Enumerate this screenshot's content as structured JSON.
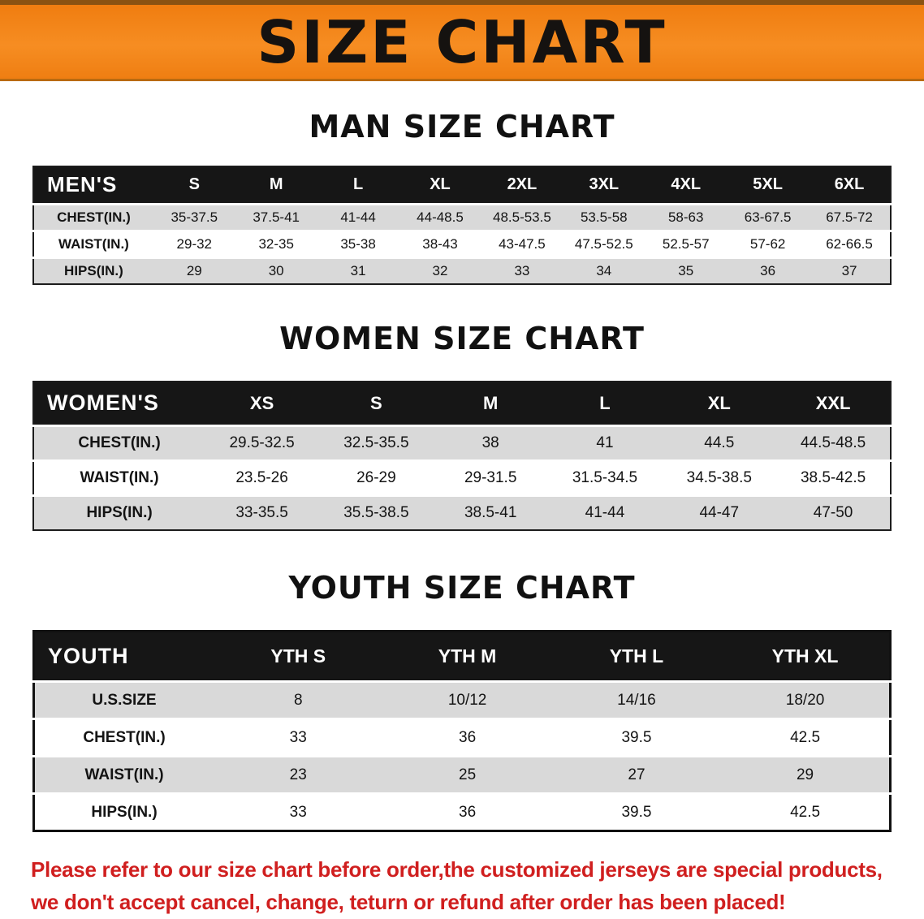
{
  "banner": {
    "title": "SIZE CHART",
    "bg_color": "#F5821C",
    "text_color": "#151210"
  },
  "sections": [
    {
      "id": "men",
      "heading": "MAN SIZE CHART",
      "table": {
        "header": [
          "MEN'S",
          "S",
          "M",
          "L",
          "XL",
          "2XL",
          "3XL",
          "4XL",
          "5XL",
          "6XL"
        ],
        "rows": [
          [
            "CHEST(IN.)",
            "35-37.5",
            "37.5-41",
            "41-44",
            "44-48.5",
            "48.5-53.5",
            "53.5-58",
            "58-63",
            "63-67.5",
            "67.5-72"
          ],
          [
            "WAIST(IN.)",
            "29-32",
            "32-35",
            "35-38",
            "38-43",
            "43-47.5",
            "47.5-52.5",
            "52.5-57",
            "57-62",
            "62-66.5"
          ],
          [
            "HIPS(IN.)",
            "29",
            "30",
            "31",
            "32",
            "33",
            "34",
            "35",
            "36",
            "37"
          ]
        ]
      }
    },
    {
      "id": "women",
      "heading": "WOMEN SIZE CHART",
      "table": {
        "header": [
          "WOMEN'S",
          "XS",
          "S",
          "M",
          "L",
          "XL",
          "XXL"
        ],
        "rows": [
          [
            "CHEST(IN.)",
            "29.5-32.5",
            "32.5-35.5",
            "38",
            "41",
            "44.5",
            "44.5-48.5"
          ],
          [
            "WAIST(IN.)",
            "23.5-26",
            "26-29",
            "29-31.5",
            "31.5-34.5",
            "34.5-38.5",
            "38.5-42.5"
          ],
          [
            "HIPS(IN.)",
            "33-35.5",
            "35.5-38.5",
            "38.5-41",
            "41-44",
            "44-47",
            "47-50"
          ]
        ]
      }
    },
    {
      "id": "youth",
      "heading": "YOUTH SIZE CHART",
      "table": {
        "header": [
          "YOUTH",
          "YTH S",
          "YTH M",
          "YTH L",
          "YTH XL"
        ],
        "rows": [
          [
            "U.S.SIZE",
            "8",
            "10/12",
            "14/16",
            "18/20"
          ],
          [
            "CHEST(IN.)",
            "33",
            "36",
            "39.5",
            "42.5"
          ],
          [
            "WAIST(IN.)",
            "23",
            "25",
            "27",
            "29"
          ],
          [
            "HIPS(IN.)",
            "33",
            "36",
            "39.5",
            "42.5"
          ]
        ]
      }
    }
  ],
  "footer": {
    "line1": "Please refer to our size chart before order,the customized jerseys are special products,",
    "line2": "we don't accept cancel, change, teturn or refund after order has been placed!",
    "text_color": "#D01F1F"
  }
}
